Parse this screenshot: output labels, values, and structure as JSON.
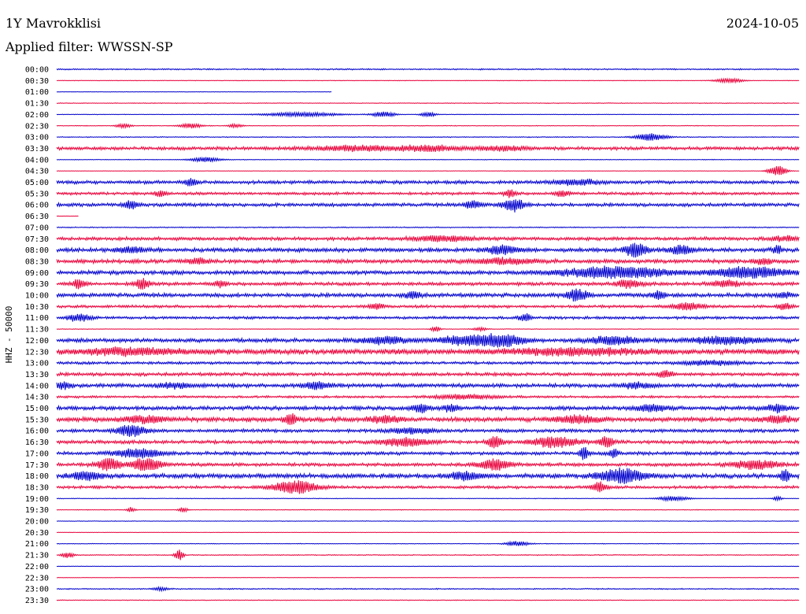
{
  "header": {
    "station": "1Y Mavrokklisi",
    "date": "2024-10-05",
    "filter": "Applied filter: WWSSN-SP"
  },
  "colors": {
    "trace_a": "#0000cc",
    "trace_b": "#e8003a",
    "text": "#000000",
    "background": "#ffffff"
  },
  "chart_data": {
    "type": "line",
    "title": "1Y Mavrokklisi",
    "subtitle": "Applied filter: WWSSN-SP",
    "ylabel": "HHZ - 50000",
    "grid": false,
    "legend": "none",
    "rows": [
      {
        "label": "00:00",
        "color": "#0000cc",
        "level": 0.12,
        "events": []
      },
      {
        "label": "00:30",
        "color": "#e8003a",
        "level": 0.05,
        "events": [
          {
            "x": 0.905,
            "amp": 0.55,
            "width": 0.018
          }
        ]
      },
      {
        "label": "01:00",
        "color": "#0000cc",
        "level": 0.04,
        "events": [],
        "end": 0.37
      },
      {
        "label": "01:30",
        "color": "#e8003a",
        "level": 0.06,
        "events": []
      },
      {
        "label": "02:00",
        "color": "#0000cc",
        "level": 0.05,
        "events": [
          {
            "x": 0.33,
            "amp": 0.5,
            "width": 0.05
          },
          {
            "x": 0.44,
            "amp": 0.7,
            "width": 0.015
          },
          {
            "x": 0.5,
            "amp": 0.6,
            "width": 0.01
          }
        ]
      },
      {
        "label": "02:30",
        "color": "#e8003a",
        "level": 0.06,
        "events": [
          {
            "x": 0.09,
            "amp": 0.5,
            "width": 0.01
          },
          {
            "x": 0.18,
            "amp": 0.6,
            "width": 0.015
          },
          {
            "x": 0.24,
            "amp": 0.4,
            "width": 0.01
          }
        ]
      },
      {
        "label": "03:00",
        "color": "#0000cc",
        "level": 0.08,
        "events": [
          {
            "x": 0.8,
            "amp": 0.9,
            "width": 0.02
          }
        ]
      },
      {
        "label": "03:30",
        "color": "#e8003a",
        "level": 0.3,
        "events": [
          {
            "x": 0.4,
            "amp": 0.6,
            "width": 0.05
          },
          {
            "x": 0.5,
            "amp": 0.6,
            "width": 0.04
          },
          {
            "x": 0.6,
            "amp": 0.5,
            "width": 0.03
          }
        ]
      },
      {
        "label": "04:00",
        "color": "#0000cc",
        "level": 0.06,
        "events": [
          {
            "x": 0.2,
            "amp": 0.6,
            "width": 0.02
          }
        ]
      },
      {
        "label": "04:30",
        "color": "#e8003a",
        "level": 0.04,
        "events": [
          {
            "x": 0.97,
            "amp": 1.3,
            "width": 0.012
          }
        ]
      },
      {
        "label": "05:00",
        "color": "#0000cc",
        "level": 0.3,
        "events": [
          {
            "x": 0.18,
            "amp": 0.8,
            "width": 0.008
          },
          {
            "x": 0.7,
            "amp": 0.6,
            "width": 0.03
          }
        ]
      },
      {
        "label": "05:30",
        "color": "#e8003a",
        "level": 0.25,
        "events": [
          {
            "x": 0.14,
            "amp": 0.7,
            "width": 0.008
          },
          {
            "x": 0.61,
            "amp": 0.9,
            "width": 0.008
          },
          {
            "x": 0.68,
            "amp": 0.6,
            "width": 0.01
          }
        ]
      },
      {
        "label": "06:00",
        "color": "#0000cc",
        "level": 0.3,
        "events": [
          {
            "x": 0.1,
            "amp": 0.8,
            "width": 0.01
          },
          {
            "x": 0.56,
            "amp": 0.9,
            "width": 0.012
          },
          {
            "x": 0.615,
            "amp": 1.5,
            "width": 0.014
          }
        ]
      },
      {
        "label": "06:30",
        "color": "#e8003a",
        "level": 0.03,
        "events": [],
        "end": 0.03
      },
      {
        "label": "07:00",
        "color": "#0000cc",
        "level": 0.1,
        "events": []
      },
      {
        "label": "07:30",
        "color": "#e8003a",
        "level": 0.3,
        "events": [
          {
            "x": 0.52,
            "amp": 0.6,
            "width": 0.04
          },
          {
            "x": 0.98,
            "amp": 0.5,
            "width": 0.02
          }
        ]
      },
      {
        "label": "08:00",
        "color": "#0000cc",
        "level": 0.35,
        "events": [
          {
            "x": 0.1,
            "amp": 0.6,
            "width": 0.02
          },
          {
            "x": 0.6,
            "amp": 1.0,
            "width": 0.02
          },
          {
            "x": 0.78,
            "amp": 1.6,
            "width": 0.015
          },
          {
            "x": 0.84,
            "amp": 1.0,
            "width": 0.015
          },
          {
            "x": 0.97,
            "amp": 1.0,
            "width": 0.006
          }
        ]
      },
      {
        "label": "08:30",
        "color": "#e8003a",
        "level": 0.35,
        "events": [
          {
            "x": 0.19,
            "amp": 0.6,
            "width": 0.015
          },
          {
            "x": 0.6,
            "amp": 0.6,
            "width": 0.04
          },
          {
            "x": 0.95,
            "amp": 0.7,
            "width": 0.01
          }
        ]
      },
      {
        "label": "09:00",
        "color": "#0000cc",
        "level": 0.35,
        "events": [
          {
            "x": 0.75,
            "amp": 1.3,
            "width": 0.07
          },
          {
            "x": 0.93,
            "amp": 1.2,
            "width": 0.05
          }
        ]
      },
      {
        "label": "09:30",
        "color": "#e8003a",
        "level": 0.3,
        "events": [
          {
            "x": 0.03,
            "amp": 1.2,
            "width": 0.008
          },
          {
            "x": 0.115,
            "amp": 1.2,
            "width": 0.01
          },
          {
            "x": 0.22,
            "amp": 0.8,
            "width": 0.008
          },
          {
            "x": 0.77,
            "amp": 0.9,
            "width": 0.015
          },
          {
            "x": 0.9,
            "amp": 0.7,
            "width": 0.02
          }
        ]
      },
      {
        "label": "10:00",
        "color": "#0000cc",
        "level": 0.35,
        "events": [
          {
            "x": 0.48,
            "amp": 0.8,
            "width": 0.01
          },
          {
            "x": 0.7,
            "amp": 1.3,
            "width": 0.015
          },
          {
            "x": 0.81,
            "amp": 1.0,
            "width": 0.008
          },
          {
            "x": 0.98,
            "amp": 0.6,
            "width": 0.01
          }
        ]
      },
      {
        "label": "10:30",
        "color": "#e8003a",
        "level": 0.25,
        "events": [
          {
            "x": 0.43,
            "amp": 0.6,
            "width": 0.01
          },
          {
            "x": 0.85,
            "amp": 0.8,
            "width": 0.02
          },
          {
            "x": 0.98,
            "amp": 0.7,
            "width": 0.01
          }
        ]
      },
      {
        "label": "11:00",
        "color": "#0000cc",
        "level": 0.25,
        "events": [
          {
            "x": 0.03,
            "amp": 0.8,
            "width": 0.015
          },
          {
            "x": 0.63,
            "amp": 0.9,
            "width": 0.008
          }
        ]
      },
      {
        "label": "11:30",
        "color": "#e8003a",
        "level": 0.05,
        "events": [
          {
            "x": 0.51,
            "amp": 0.7,
            "width": 0.006
          },
          {
            "x": 0.57,
            "amp": 0.4,
            "width": 0.01
          }
        ]
      },
      {
        "label": "12:00",
        "color": "#0000cc",
        "level": 0.35,
        "events": [
          {
            "x": 0.44,
            "amp": 0.8,
            "width": 0.03
          },
          {
            "x": 0.55,
            "amp": 0.9,
            "width": 0.04
          },
          {
            "x": 0.6,
            "amp": 1.2,
            "width": 0.03
          },
          {
            "x": 0.75,
            "amp": 0.9,
            "width": 0.03
          },
          {
            "x": 0.9,
            "amp": 0.8,
            "width": 0.05
          }
        ]
      },
      {
        "label": "12:30",
        "color": "#e8003a",
        "level": 0.5,
        "events": [
          {
            "x": 0.1,
            "amp": 0.7,
            "width": 0.06
          },
          {
            "x": 0.7,
            "amp": 0.7,
            "width": 0.08
          }
        ]
      },
      {
        "label": "13:00",
        "color": "#0000cc",
        "level": 0.25,
        "events": [
          {
            "x": 0.88,
            "amp": 0.5,
            "width": 0.04
          }
        ]
      },
      {
        "label": "13:30",
        "color": "#e8003a",
        "level": 0.3,
        "events": [
          {
            "x": 0.82,
            "amp": 0.8,
            "width": 0.01
          }
        ]
      },
      {
        "label": "14:00",
        "color": "#0000cc",
        "level": 0.35,
        "events": [
          {
            "x": 0.01,
            "amp": 0.8,
            "width": 0.01
          },
          {
            "x": 0.16,
            "amp": 0.6,
            "width": 0.02
          },
          {
            "x": 0.35,
            "amp": 0.7,
            "width": 0.02
          },
          {
            "x": 0.78,
            "amp": 0.6,
            "width": 0.02
          }
        ]
      },
      {
        "label": "14:30",
        "color": "#e8003a",
        "level": 0.2,
        "events": [
          {
            "x": 0.55,
            "amp": 0.5,
            "width": 0.04
          }
        ]
      },
      {
        "label": "15:00",
        "color": "#0000cc",
        "level": 0.35,
        "events": [
          {
            "x": 0.49,
            "amp": 0.9,
            "width": 0.012
          },
          {
            "x": 0.53,
            "amp": 0.8,
            "width": 0.01
          },
          {
            "x": 0.8,
            "amp": 0.8,
            "width": 0.02
          },
          {
            "x": 0.97,
            "amp": 0.8,
            "width": 0.015
          }
        ]
      },
      {
        "label": "15:30",
        "color": "#e8003a",
        "level": 0.4,
        "events": [
          {
            "x": 0.12,
            "amp": 0.7,
            "width": 0.03
          },
          {
            "x": 0.315,
            "amp": 1.5,
            "width": 0.008
          },
          {
            "x": 0.44,
            "amp": 0.7,
            "width": 0.02
          },
          {
            "x": 0.7,
            "amp": 0.8,
            "width": 0.03
          },
          {
            "x": 0.97,
            "amp": 0.7,
            "width": 0.02
          }
        ]
      },
      {
        "label": "16:00",
        "color": "#0000cc",
        "level": 0.3,
        "events": [
          {
            "x": 0.1,
            "amp": 1.2,
            "width": 0.02
          },
          {
            "x": 0.48,
            "amp": 0.6,
            "width": 0.03
          }
        ]
      },
      {
        "label": "16:30",
        "color": "#e8003a",
        "level": 0.3,
        "events": [
          {
            "x": 0.47,
            "amp": 1.0,
            "width": 0.03
          },
          {
            "x": 0.59,
            "amp": 1.4,
            "width": 0.01
          },
          {
            "x": 0.67,
            "amp": 1.2,
            "width": 0.03
          },
          {
            "x": 0.74,
            "amp": 1.2,
            "width": 0.01
          }
        ]
      },
      {
        "label": "17:00",
        "color": "#0000cc",
        "level": 0.3,
        "events": [
          {
            "x": 0.11,
            "amp": 1.0,
            "width": 0.03
          },
          {
            "x": 0.71,
            "amp": 1.4,
            "width": 0.006
          },
          {
            "x": 0.75,
            "amp": 1.0,
            "width": 0.006
          }
        ]
      },
      {
        "label": "17:30",
        "color": "#e8003a",
        "level": 0.3,
        "events": [
          {
            "x": 0.07,
            "amp": 1.4,
            "width": 0.015
          },
          {
            "x": 0.12,
            "amp": 1.5,
            "width": 0.02
          },
          {
            "x": 0.59,
            "amp": 1.3,
            "width": 0.02
          },
          {
            "x": 0.94,
            "amp": 1.0,
            "width": 0.03
          }
        ]
      },
      {
        "label": "18:00",
        "color": "#0000cc",
        "level": 0.4,
        "events": [
          {
            "x": 0.04,
            "amp": 0.9,
            "width": 0.02
          },
          {
            "x": 0.55,
            "amp": 0.9,
            "width": 0.02
          },
          {
            "x": 0.76,
            "amp": 1.6,
            "width": 0.03
          },
          {
            "x": 0.98,
            "amp": 1.3,
            "width": 0.006
          }
        ]
      },
      {
        "label": "18:30",
        "color": "#e8003a",
        "level": 0.25,
        "events": [
          {
            "x": 0.32,
            "amp": 1.5,
            "width": 0.03
          },
          {
            "x": 0.73,
            "amp": 1.2,
            "width": 0.01
          }
        ]
      },
      {
        "label": "19:00",
        "color": "#0000cc",
        "level": 0.06,
        "events": [
          {
            "x": 0.83,
            "amp": 0.6,
            "width": 0.02
          },
          {
            "x": 0.97,
            "amp": 0.6,
            "width": 0.005
          }
        ]
      },
      {
        "label": "19:30",
        "color": "#e8003a",
        "level": 0.06,
        "events": [
          {
            "x": 0.1,
            "amp": 0.6,
            "width": 0.005
          },
          {
            "x": 0.17,
            "amp": 0.6,
            "width": 0.006
          }
        ]
      },
      {
        "label": "20:00",
        "color": "#0000cc",
        "level": 0.05,
        "events": []
      },
      {
        "label": "20:30",
        "color": "#e8003a",
        "level": 0.04,
        "events": []
      },
      {
        "label": "21:00",
        "color": "#0000cc",
        "level": 0.06,
        "events": [
          {
            "x": 0.62,
            "amp": 0.6,
            "width": 0.015
          }
        ]
      },
      {
        "label": "21:30",
        "color": "#e8003a",
        "level": 0.08,
        "events": [
          {
            "x": 0.015,
            "amp": 0.7,
            "width": 0.008
          },
          {
            "x": 0.165,
            "amp": 1.2,
            "width": 0.006
          }
        ]
      },
      {
        "label": "22:00",
        "color": "#0000cc",
        "level": 0.04,
        "events": []
      },
      {
        "label": "22:30",
        "color": "#e8003a",
        "level": 0.04,
        "events": []
      },
      {
        "label": "23:00",
        "color": "#0000cc",
        "level": 0.1,
        "events": [
          {
            "x": 0.14,
            "amp": 0.4,
            "width": 0.01
          }
        ]
      },
      {
        "label": "23:30",
        "color": "#e8003a",
        "level": 0.06,
        "events": []
      }
    ]
  }
}
